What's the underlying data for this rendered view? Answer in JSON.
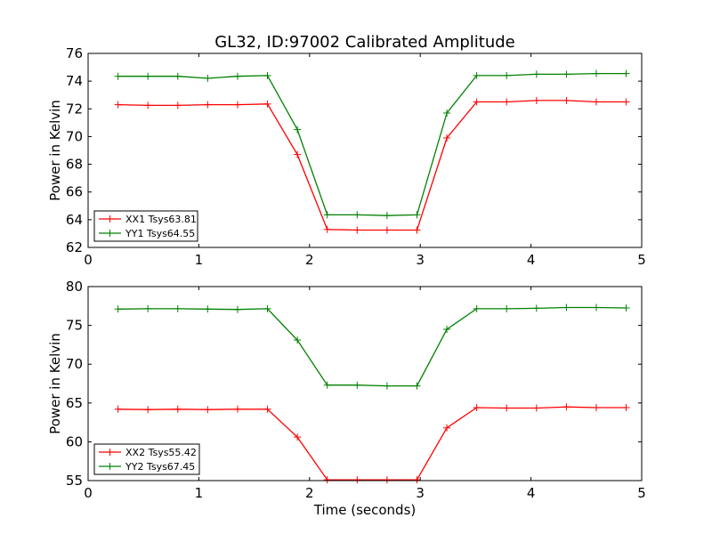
{
  "figure": {
    "title": "GL32, ID:97002 Calibrated Amplitude",
    "xlabel": "Time (seconds)"
  },
  "colors": {
    "xx": "#ff0000",
    "yy": "#008000"
  },
  "chart_data": [
    {
      "type": "line",
      "title": "GL32, ID:97002 Calibrated Amplitude",
      "xlabel": "",
      "ylabel": "Power in Kelvin",
      "xlim": [
        0,
        5
      ],
      "ylim": [
        62,
        76
      ],
      "xticks": [
        "0",
        "1",
        "2",
        "3",
        "4",
        "5"
      ],
      "yticks": [
        "62",
        "64",
        "66",
        "68",
        "70",
        "72",
        "74",
        "76"
      ],
      "legend": "lower-left",
      "grid": false,
      "x": [
        0.27,
        0.54,
        0.81,
        1.08,
        1.35,
        1.62,
        1.89,
        2.16,
        2.43,
        2.7,
        2.97,
        3.24,
        3.51,
        3.78,
        4.05,
        4.32,
        4.59,
        4.86
      ],
      "series": [
        {
          "name": "XX1 Tsys63.81",
          "color": "#ff0000",
          "values": [
            72.3,
            72.25,
            72.25,
            72.3,
            72.3,
            72.35,
            68.7,
            63.3,
            63.25,
            63.25,
            63.25,
            69.9,
            72.5,
            72.5,
            72.6,
            72.6,
            72.5,
            72.5
          ]
        },
        {
          "name": "YY1 Tsys64.55",
          "color": "#008000",
          "values": [
            74.35,
            74.35,
            74.35,
            74.2,
            74.35,
            74.4,
            70.5,
            64.35,
            64.35,
            64.3,
            64.35,
            71.7,
            74.4,
            74.4,
            74.5,
            74.5,
            74.55,
            74.55
          ]
        }
      ]
    },
    {
      "type": "line",
      "title": "",
      "xlabel": "Time (seconds)",
      "ylabel": "Power in Kelvin",
      "xlim": [
        0,
        5
      ],
      "ylim": [
        55,
        80
      ],
      "xticks": [
        "0",
        "1",
        "2",
        "3",
        "4",
        "5"
      ],
      "yticks": [
        "55",
        "60",
        "65",
        "70",
        "75",
        "80"
      ],
      "legend": "lower-left",
      "grid": false,
      "x": [
        0.27,
        0.54,
        0.81,
        1.08,
        1.35,
        1.62,
        1.89,
        2.16,
        2.43,
        2.7,
        2.97,
        3.24,
        3.51,
        3.78,
        4.05,
        4.32,
        4.59,
        4.86
      ],
      "series": [
        {
          "name": "XX2 Tsys55.42",
          "color": "#ff0000",
          "values": [
            64.2,
            64.15,
            64.2,
            64.15,
            64.2,
            64.2,
            60.6,
            55.1,
            55.1,
            55.1,
            55.1,
            61.8,
            64.4,
            64.35,
            64.35,
            64.5,
            64.4,
            64.4
          ]
        },
        {
          "name": "YY2 Tsys67.45",
          "color": "#008000",
          "values": [
            77.1,
            77.15,
            77.15,
            77.1,
            77.05,
            77.15,
            73.1,
            67.3,
            67.3,
            67.2,
            67.2,
            74.5,
            77.15,
            77.15,
            77.2,
            77.3,
            77.3,
            77.25
          ]
        }
      ]
    }
  ]
}
